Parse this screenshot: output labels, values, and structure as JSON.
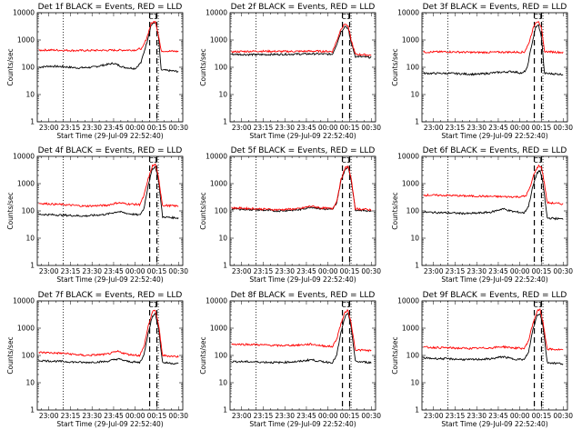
{
  "figure": {
    "background": "#ffffff",
    "colors": {
      "events": "#000000",
      "lld": "#ff0000",
      "axes": "#000000"
    }
  },
  "chart_data": [
    {
      "type": "line",
      "title": "Det 1f BLACK = Events, RED = LLD",
      "tag": "C1",
      "xlabel": "Start Time (29-Jul-09 22:52:40)",
      "ylabel": "Counts/sec",
      "xlim": [
        "22:52",
        "00:33"
      ],
      "xticks": [
        "23:00",
        "23:15",
        "23:30",
        "23:45",
        "00:00",
        "00:15",
        "00:30"
      ],
      "yscale": "log",
      "ylim": [
        1,
        10000
      ],
      "yticks": [
        "1",
        "10",
        "100",
        "1000",
        "10000"
      ],
      "vlines_dotted": [
        "23:10",
        "00:16"
      ],
      "vlines_dashed": [
        "00:10",
        "00:15"
      ],
      "series": [
        {
          "color": "#000000",
          "x": [
            "22:53",
            "23:00",
            "23:10",
            "23:20",
            "23:30",
            "23:38",
            "23:45",
            "23:52",
            "00:00",
            "00:04",
            "00:08",
            "00:11",
            "00:14",
            "00:16",
            "00:18",
            "00:30"
          ],
          "values": [
            100,
            110,
            105,
            95,
            100,
            120,
            140,
            100,
            90,
            150,
            800,
            3500,
            4500,
            1500,
            80,
            70
          ]
        },
        {
          "color": "#ff0000",
          "x": [
            "22:53",
            "23:00",
            "23:20",
            "23:40",
            "00:00",
            "00:05",
            "00:08",
            "00:11",
            "00:14",
            "00:16",
            "00:18",
            "00:30"
          ],
          "values": [
            420,
            430,
            410,
            420,
            430,
            500,
            1200,
            4000,
            5000,
            1600,
            400,
            380
          ]
        }
      ]
    },
    {
      "type": "line",
      "title": "Det 2f BLACK = Events, RED = LLD",
      "tag": "C1",
      "xlabel": "Start Time (29-Jul-09 22:52:40)",
      "ylabel": "Counts/sec",
      "xlim": [
        "22:52",
        "00:33"
      ],
      "xticks": [
        "23:00",
        "23:15",
        "23:30",
        "23:45",
        "00:00",
        "00:15",
        "00:30"
      ],
      "yscale": "log",
      "ylim": [
        1,
        10000
      ],
      "yticks": [
        "1",
        "10",
        "100",
        "1000",
        "10000"
      ],
      "vlines_dotted": [
        "23:10",
        "00:16"
      ],
      "vlines_dashed": [
        "00:10",
        "00:15"
      ],
      "series": [
        {
          "color": "#000000",
          "x": [
            "22:53",
            "23:10",
            "23:30",
            "23:50",
            "00:03",
            "00:06",
            "00:09",
            "00:12",
            "00:14",
            "00:16",
            "00:19",
            "00:30"
          ],
          "values": [
            300,
            290,
            300,
            310,
            300,
            700,
            2000,
            3300,
            2500,
            800,
            250,
            230
          ]
        },
        {
          "color": "#ff0000",
          "x": [
            "22:53",
            "23:10",
            "23:30",
            "23:50",
            "00:03",
            "00:06",
            "00:09",
            "00:12",
            "00:14",
            "00:16",
            "00:19",
            "00:30"
          ],
          "values": [
            370,
            390,
            380,
            390,
            380,
            900,
            2600,
            4000,
            3000,
            1000,
            300,
            280
          ]
        }
      ]
    },
    {
      "type": "line",
      "title": "Det 3f BLACK = Events, RED = LLD",
      "tag": "C1",
      "xlabel": "Start Time (29-Jul-09 22:52:40)",
      "ylabel": "Counts/sec",
      "xlim": [
        "22:52",
        "00:33"
      ],
      "xticks": [
        "23:00",
        "23:15",
        "23:30",
        "23:45",
        "00:00",
        "00:15",
        "00:30"
      ],
      "yscale": "log",
      "ylim": [
        1,
        10000
      ],
      "yticks": [
        "1",
        "10",
        "100",
        "1000",
        "10000"
      ],
      "vlines_dotted": [
        "23:10",
        "00:16"
      ],
      "vlines_dashed": [
        "00:10",
        "00:15"
      ],
      "series": [
        {
          "color": "#000000",
          "x": [
            "22:53",
            "23:10",
            "23:30",
            "23:45",
            "23:55",
            "00:02",
            "00:05",
            "00:08",
            "00:11",
            "00:13",
            "00:15",
            "00:17",
            "00:30"
          ],
          "values": [
            60,
            60,
            55,
            65,
            70,
            60,
            90,
            600,
            3000,
            3500,
            1200,
            60,
            55
          ]
        },
        {
          "color": "#ff0000",
          "x": [
            "22:53",
            "23:10",
            "23:30",
            "23:50",
            "00:03",
            "00:06",
            "00:09",
            "00:11",
            "00:13",
            "00:15",
            "00:17",
            "00:30"
          ],
          "values": [
            360,
            370,
            350,
            360,
            360,
            700,
            2500,
            4500,
            5000,
            2500,
            380,
            350
          ]
        }
      ]
    },
    {
      "type": "line",
      "title": "Det 4f BLACK = Events, RED = LLD",
      "tag": "C1",
      "xlabel": "Start Time (29-Jul-09 22:52:40)",
      "ylabel": "Counts/sec",
      "xlim": [
        "22:52",
        "00:33"
      ],
      "xticks": [
        "23:00",
        "23:15",
        "23:30",
        "23:45",
        "00:00",
        "00:15",
        "00:30"
      ],
      "yscale": "log",
      "ylim": [
        1,
        10000
      ],
      "yticks": [
        "1",
        "10",
        "100",
        "1000",
        "10000"
      ],
      "vlines_dotted": [
        "23:10",
        "00:16"
      ],
      "vlines_dashed": [
        "00:10",
        "00:15"
      ],
      "series": [
        {
          "color": "#000000",
          "x": [
            "22:53",
            "23:10",
            "23:25",
            "23:40",
            "23:48",
            "23:55",
            "00:03",
            "00:06",
            "00:09",
            "00:12",
            "00:14",
            "00:16",
            "00:19",
            "00:30"
          ],
          "values": [
            75,
            70,
            65,
            75,
            95,
            80,
            70,
            120,
            900,
            3500,
            4200,
            1500,
            60,
            55
          ]
        },
        {
          "color": "#ff0000",
          "x": [
            "22:53",
            "23:10",
            "23:25",
            "23:40",
            "23:48",
            "23:55",
            "00:03",
            "00:06",
            "00:09",
            "00:12",
            "00:14",
            "00:16",
            "00:19",
            "00:30"
          ],
          "values": [
            190,
            170,
            150,
            160,
            200,
            180,
            170,
            350,
            1500,
            4500,
            5000,
            1800,
            160,
            150
          ]
        }
      ]
    },
    {
      "type": "line",
      "title": "Det 5f BLACK = Events, RED = LLD",
      "tag": "C1",
      "xlabel": "Start Time (29-Jul-09 22:52:40)",
      "ylabel": "Counts/sec",
      "xlim": [
        "22:52",
        "00:33"
      ],
      "xticks": [
        "23:00",
        "23:15",
        "23:30",
        "23:45",
        "00:00",
        "00:15",
        "00:30"
      ],
      "yscale": "log",
      "ylim": [
        1,
        10000
      ],
      "yticks": [
        "1",
        "10",
        "100",
        "1000",
        "10000"
      ],
      "vlines_dotted": [
        "23:10",
        "00:16"
      ],
      "vlines_dashed": [
        "00:10",
        "00:15"
      ],
      "series": [
        {
          "color": "#000000",
          "x": [
            "22:53",
            "23:10",
            "23:25",
            "23:40",
            "23:48",
            "23:55",
            "00:03",
            "00:06",
            "00:09",
            "00:12",
            "00:14",
            "00:16",
            "00:19",
            "00:30"
          ],
          "values": [
            120,
            110,
            100,
            110,
            140,
            120,
            110,
            200,
            1300,
            3500,
            4000,
            1400,
            110,
            100
          ]
        },
        {
          "color": "#ff0000",
          "x": [
            "22:53",
            "23:10",
            "23:25",
            "23:40",
            "23:48",
            "23:55",
            "00:03",
            "00:06",
            "00:09",
            "00:12",
            "00:14",
            "00:16",
            "00:19",
            "00:30"
          ],
          "values": [
            130,
            120,
            110,
            120,
            150,
            130,
            120,
            220,
            1400,
            3800,
            4400,
            1500,
            120,
            110
          ]
        }
      ]
    },
    {
      "type": "line",
      "title": "Det 6f BLACK = Events, RED = LLD",
      "tag": "C1",
      "xlabel": "Start Time (29-Jul-09 22:52:40)",
      "ylabel": "Counts/sec",
      "xlim": [
        "22:52",
        "00:33"
      ],
      "xticks": [
        "23:00",
        "23:15",
        "23:30",
        "23:45",
        "00:00",
        "00:15",
        "00:30"
      ],
      "yscale": "log",
      "ylim": [
        1,
        10000
      ],
      "yticks": [
        "1",
        "10",
        "100",
        "1000",
        "10000"
      ],
      "vlines_dotted": [
        "23:10",
        "00:16"
      ],
      "vlines_dashed": [
        "00:10",
        "00:15"
      ],
      "series": [
        {
          "color": "#000000",
          "x": [
            "22:53",
            "23:10",
            "23:25",
            "23:40",
            "23:48",
            "23:55",
            "00:03",
            "00:06",
            "00:09",
            "00:12",
            "00:14",
            "00:16",
            "00:19",
            "00:30"
          ],
          "values": [
            90,
            85,
            80,
            90,
            120,
            95,
            85,
            150,
            800,
            2500,
            3000,
            1000,
            55,
            50
          ]
        },
        {
          "color": "#ff0000",
          "x": [
            "22:53",
            "23:10",
            "23:25",
            "23:40",
            "23:50",
            "00:00",
            "00:04",
            "00:07",
            "00:10",
            "00:13",
            "00:15",
            "00:17",
            "00:19",
            "00:30"
          ],
          "values": [
            380,
            370,
            350,
            340,
            330,
            330,
            350,
            700,
            2500,
            4500,
            4000,
            1000,
            200,
            180
          ]
        }
      ]
    },
    {
      "type": "line",
      "title": "Det 7f BLACK = Events, RED = LLD",
      "tag": "C1",
      "xlabel": "Start Time (29-Jul-09 22:52:40)",
      "ylabel": "Counts/sec",
      "xlim": [
        "22:52",
        "00:33"
      ],
      "xticks": [
        "23:00",
        "23:15",
        "23:30",
        "23:45",
        "00:00",
        "00:15",
        "00:30"
      ],
      "yscale": "log",
      "ylim": [
        1,
        10000
      ],
      "yticks": [
        "1",
        "10",
        "100",
        "1000",
        "10000"
      ],
      "vlines_dotted": [
        "23:10",
        "00:16"
      ],
      "vlines_dashed": [
        "00:10",
        "00:15"
      ],
      "series": [
        {
          "color": "#000000",
          "x": [
            "22:53",
            "23:10",
            "23:25",
            "23:40",
            "23:48",
            "23:55",
            "00:03",
            "00:06",
            "00:09",
            "00:12",
            "00:14",
            "00:16",
            "00:19",
            "00:30"
          ],
          "values": [
            65,
            60,
            55,
            60,
            75,
            60,
            55,
            100,
            700,
            2800,
            3300,
            1100,
            55,
            50
          ]
        },
        {
          "color": "#ff0000",
          "x": [
            "22:53",
            "23:10",
            "23:25",
            "23:40",
            "23:48",
            "23:55",
            "00:03",
            "00:06",
            "00:09",
            "00:12",
            "00:14",
            "00:16",
            "00:19",
            "00:30"
          ],
          "values": [
            130,
            120,
            100,
            110,
            140,
            110,
            100,
            200,
            1200,
            4000,
            4500,
            1500,
            100,
            90
          ]
        }
      ]
    },
    {
      "type": "line",
      "title": "Det 8f BLACK = Events, RED = LLD",
      "tag": "C1",
      "xlabel": "Start Time (29-Jul-09 22:52:40)",
      "ylabel": "Counts/sec",
      "xlim": [
        "22:52",
        "00:33"
      ],
      "xticks": [
        "23:00",
        "23:15",
        "23:30",
        "23:45",
        "00:00",
        "00:15",
        "00:30"
      ],
      "yscale": "log",
      "ylim": [
        1,
        10000
      ],
      "yticks": [
        "1",
        "10",
        "100",
        "1000",
        "10000"
      ],
      "vlines_dotted": [
        "23:10",
        "00:16"
      ],
      "vlines_dashed": [
        "00:10",
        "00:15"
      ],
      "series": [
        {
          "color": "#000000",
          "x": [
            "22:53",
            "23:10",
            "23:25",
            "23:40",
            "23:48",
            "23:55",
            "00:03",
            "00:06",
            "00:09",
            "00:12",
            "00:14",
            "00:16",
            "00:19",
            "00:30"
          ],
          "values": [
            60,
            58,
            55,
            60,
            70,
            60,
            55,
            100,
            700,
            2800,
            3300,
            1100,
            60,
            55
          ]
        },
        {
          "color": "#ff0000",
          "x": [
            "22:53",
            "23:10",
            "23:25",
            "23:40",
            "23:48",
            "23:55",
            "00:03",
            "00:06",
            "00:09",
            "00:12",
            "00:14",
            "00:16",
            "00:19",
            "00:30"
          ],
          "values": [
            260,
            250,
            230,
            240,
            260,
            230,
            210,
            400,
            1500,
            4000,
            4500,
            1500,
            160,
            150
          ]
        }
      ]
    },
    {
      "type": "line",
      "title": "Det 9f BLACK = Events, RED = LLD",
      "tag": "C1",
      "xlabel": "Start Time (29-Jul-09 22:52:40)",
      "ylabel": "Counts/sec",
      "xlim": [
        "22:52",
        "00:33"
      ],
      "xticks": [
        "23:00",
        "23:15",
        "23:30",
        "23:45",
        "00:00",
        "00:15",
        "00:30"
      ],
      "yscale": "log",
      "ylim": [
        1,
        10000
      ],
      "yticks": [
        "1",
        "10",
        "100",
        "1000",
        "10000"
      ],
      "vlines_dotted": [
        "23:10",
        "00:16"
      ],
      "vlines_dashed": [
        "00:10",
        "00:15"
      ],
      "series": [
        {
          "color": "#000000",
          "x": [
            "22:53",
            "23:10",
            "23:25",
            "23:40",
            "23:48",
            "23:55",
            "00:03",
            "00:06",
            "00:09",
            "00:12",
            "00:14",
            "00:16",
            "00:19",
            "00:30"
          ],
          "values": [
            80,
            75,
            70,
            75,
            90,
            75,
            70,
            130,
            900,
            3000,
            3500,
            1200,
            55,
            50
          ]
        },
        {
          "color": "#ff0000",
          "x": [
            "22:53",
            "23:10",
            "23:25",
            "23:40",
            "23:48",
            "23:55",
            "00:03",
            "00:06",
            "00:09",
            "00:12",
            "00:14",
            "00:16",
            "00:19",
            "00:30"
          ],
          "values": [
            200,
            190,
            180,
            190,
            210,
            190,
            180,
            350,
            1500,
            4200,
            4800,
            1600,
            170,
            160
          ]
        }
      ]
    }
  ]
}
